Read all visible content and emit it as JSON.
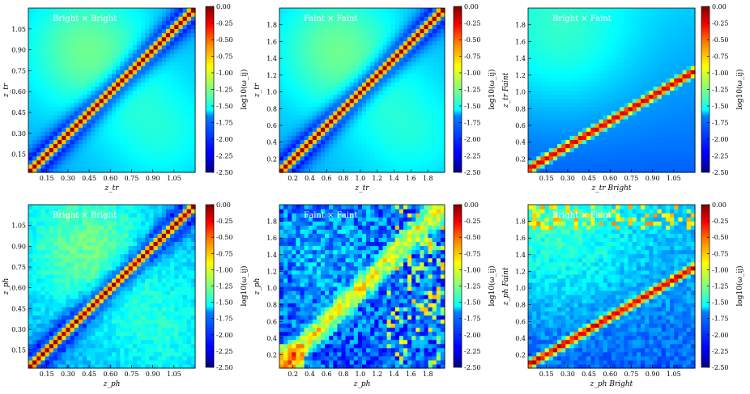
{
  "figure": {
    "colormap": "jet",
    "label_color": "#ffffff"
  },
  "chart_data": [
    {
      "type": "heatmap",
      "shape": "diag",
      "slope": 1.0,
      "noise": false,
      "title": "Bright × Bright",
      "xlabel": "z_tr",
      "ylabel": "z_tr",
      "xticks": [
        "0.15",
        "0.30",
        "0.45",
        "0.60",
        "0.75",
        "0.90",
        "1.05"
      ],
      "yticks": [
        "0.15",
        "0.30",
        "0.45",
        "0.60",
        "0.75",
        "0.90",
        "1.05"
      ],
      "xlim": [
        0.02,
        1.2
      ],
      "ylim": [
        0.02,
        1.2
      ],
      "colorbar": {
        "label": "log10(ω_ij)",
        "range": [
          -2.5,
          0.0
        ],
        "ticks": [
          "0.00",
          "-0.25",
          "-0.50",
          "-0.75",
          "-1.00",
          "-1.25",
          "-1.50",
          "-1.75",
          "-2.00",
          "-2.25",
          "-2.50"
        ]
      }
    },
    {
      "type": "heatmap",
      "shape": "diag",
      "slope": 1.0,
      "noise": false,
      "title": "Faint × Faint",
      "xlabel": "z_tr",
      "ylabel": "z_tr",
      "xticks": [
        "0.2",
        "0.4",
        "0.6",
        "0.8",
        "1.0",
        "1.2",
        "1.4",
        "1.6",
        "1.8"
      ],
      "yticks": [
        "0.2",
        "0.4",
        "0.6",
        "0.8",
        "1.0",
        "1.2",
        "1.4",
        "1.6",
        "1.8"
      ],
      "xlim": [
        0.04,
        2.0
      ],
      "ylim": [
        0.04,
        2.0
      ],
      "colorbar": {
        "label": "log10(ω_ij)",
        "range": [
          -2.5,
          0.0
        ],
        "ticks": [
          "0.00",
          "-0.25",
          "-0.50",
          "-0.75",
          "-1.00",
          "-1.25",
          "-1.50",
          "-1.75",
          "-2.00",
          "-2.25",
          "-2.50"
        ]
      }
    },
    {
      "type": "heatmap",
      "shape": "band",
      "slope": 0.6,
      "noise": false,
      "title": "Bright × Faint",
      "xlabel": "z_tr Bright",
      "ylabel": "z_tr Faint",
      "xticks": [
        "0.15",
        "0.30",
        "0.45",
        "0.60",
        "0.75",
        "0.90",
        "1.05"
      ],
      "yticks": [
        "0.2",
        "0.4",
        "0.6",
        "0.8",
        "1.0",
        "1.2",
        "1.4",
        "1.6",
        "1.8"
      ],
      "xlim": [
        0.02,
        1.2
      ],
      "ylim": [
        0.04,
        2.0
      ],
      "colorbar": {
        "label": "log10(ω_ij)",
        "range": [
          -2.5,
          0.0
        ],
        "ticks": [
          "0.00",
          "-0.25",
          "-0.50",
          "-0.75",
          "-1.00",
          "-1.25",
          "-1.50",
          "-1.75",
          "-2.00",
          "-2.25",
          "-2.50"
        ]
      }
    },
    {
      "type": "heatmap",
      "shape": "diag",
      "slope": 1.0,
      "noise": true,
      "title": "Bright × Bright",
      "xlabel": "z_ph",
      "ylabel": "z_ph",
      "xticks": [
        "0.15",
        "0.30",
        "0.45",
        "0.60",
        "0.75",
        "0.90",
        "1.05"
      ],
      "yticks": [
        "0.15",
        "0.30",
        "0.45",
        "0.60",
        "0.75",
        "0.90",
        "1.05"
      ],
      "xlim": [
        0.02,
        1.2
      ],
      "ylim": [
        0.02,
        1.2
      ],
      "colorbar": {
        "label": "log10(ω_ij)",
        "range": [
          -2.5,
          0.0
        ],
        "ticks": [
          "0.00",
          "-0.25",
          "-0.50",
          "-0.75",
          "-1.00",
          "-1.25",
          "-1.50",
          "-1.75",
          "-2.00",
          "-2.25",
          "-2.50"
        ]
      }
    },
    {
      "type": "heatmap",
      "shape": "diffuse",
      "slope": 1.0,
      "noise": true,
      "title": "Faint × Faint",
      "xlabel": "z_ph",
      "ylabel": "z_ph",
      "xticks": [
        "0.2",
        "0.4",
        "0.6",
        "0.8",
        "1.0",
        "1.2",
        "1.4",
        "1.6",
        "1.8"
      ],
      "yticks": [
        "0.2",
        "0.4",
        "0.6",
        "0.8",
        "1.0",
        "1.2",
        "1.4",
        "1.6",
        "1.8"
      ],
      "xlim": [
        0.04,
        2.0
      ],
      "ylim": [
        0.04,
        2.0
      ],
      "colorbar": {
        "label": "log10(ω_ij)",
        "range": [
          -2.5,
          0.0
        ],
        "ticks": [
          "0.00",
          "-0.25",
          "-0.50",
          "-0.75",
          "-1.00",
          "-1.25",
          "-1.50",
          "-1.75",
          "-2.00",
          "-2.25",
          "-2.50"
        ]
      }
    },
    {
      "type": "heatmap",
      "shape": "band",
      "slope": 0.6,
      "noise": true,
      "title": "Bright × Faint",
      "xlabel": "z_ph Bright",
      "ylabel": "z_ph Faint",
      "xticks": [
        "0.15",
        "0.30",
        "0.45",
        "0.60",
        "0.75",
        "0.90",
        "1.05"
      ],
      "yticks": [
        "0.2",
        "0.4",
        "0.6",
        "0.8",
        "1.0",
        "1.2",
        "1.4",
        "1.6",
        "1.8"
      ],
      "xlim": [
        0.02,
        1.2
      ],
      "ylim": [
        0.04,
        2.0
      ],
      "colorbar": {
        "label": "log10(ω_ij)",
        "range": [
          -2.5,
          0.0
        ],
        "ticks": [
          "0.00",
          "-0.25",
          "-0.50",
          "-0.75",
          "-1.00",
          "-1.25",
          "-1.50",
          "-1.75",
          "-2.00",
          "-2.25",
          "-2.50"
        ]
      }
    }
  ]
}
